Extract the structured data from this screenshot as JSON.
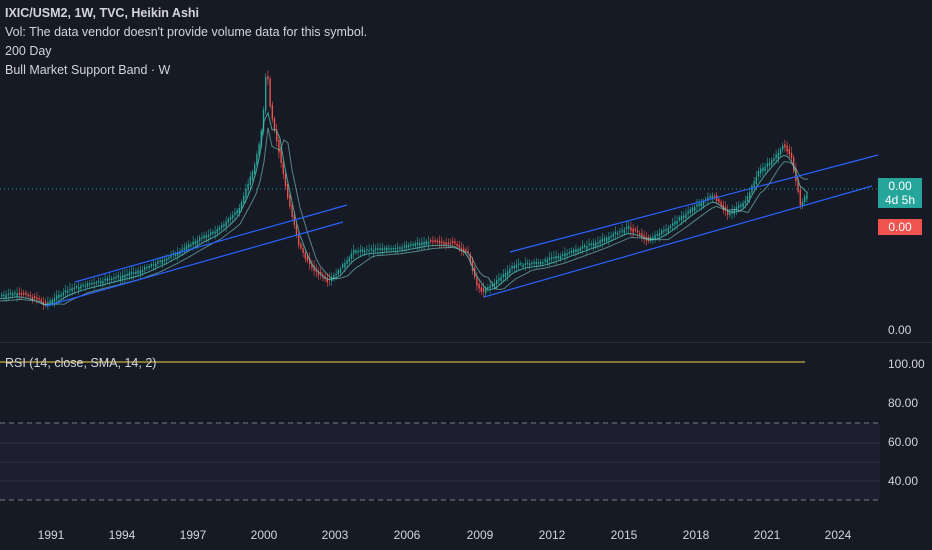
{
  "legend": {
    "symbol_line": "IXIC/USM2, 1W, TVC, Heikin Ashi",
    "volume_note": "Vol: The data vendor doesn't provide volume data for this symbol.",
    "ma_label": "200 Day",
    "band_label": "Bull Market Support Band · W"
  },
  "price_axis": {
    "badge_value": "0.00",
    "countdown": "4d 5h",
    "red_badge_value": "0.00",
    "bottom_value": "0.00"
  },
  "rsi": {
    "label": "RSI (14, close, SMA, 14, 2)",
    "ticks": [
      "100.00",
      "80.00",
      "60.00",
      "40.00"
    ]
  },
  "time_axis": {
    "labels": [
      "1991",
      "1994",
      "1997",
      "2000",
      "2003",
      "2006",
      "2009",
      "2012",
      "2015",
      "2018",
      "2021",
      "2024"
    ]
  },
  "colors": {
    "background": "#161a25",
    "up_candle": "#26a69a",
    "down_candle": "#ef5350",
    "trendline": "#2962ff",
    "rsi_line": "#f5d142"
  },
  "chart_data": {
    "type": "line",
    "title": "IXIC/USM2, 1W, TVC, Heikin Ashi",
    "x": [
      "1991",
      "1994",
      "1997",
      "2000",
      "2003",
      "2006",
      "2009",
      "2012",
      "2015",
      "2018",
      "2021",
      "2024"
    ],
    "series": [],
    "grid": false
  }
}
